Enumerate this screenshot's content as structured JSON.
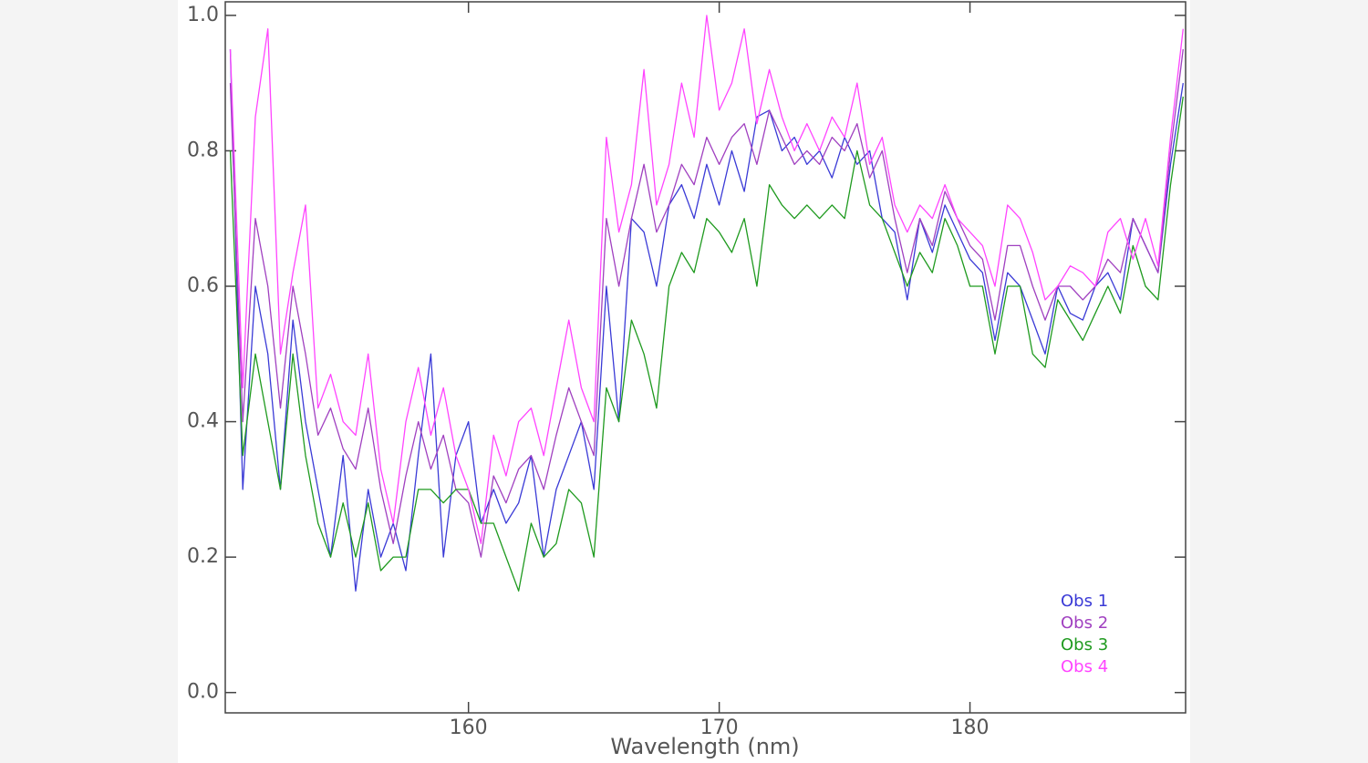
{
  "chart_data": {
    "type": "line",
    "xlabel": "Wavelength (nm)",
    "xlim": [
      150.3,
      188.6
    ],
    "ylim": [
      -0.03,
      1.02
    ],
    "xticks": [
      160,
      170,
      180
    ],
    "yticks": [
      {
        "value": 0,
        "label": "0.0"
      },
      0.2,
      0.4,
      0.6,
      0.8,
      {
        "value": 1,
        "label": "1.0"
      }
    ],
    "x": [
      150.5,
      151,
      151.5,
      152,
      152.5,
      153,
      153.5,
      154,
      154.5,
      155,
      155.5,
      156,
      156.5,
      157,
      157.5,
      158,
      158.5,
      159,
      159.5,
      160,
      160.5,
      161,
      161.5,
      162,
      162.5,
      163,
      163.5,
      164,
      164.5,
      165,
      165.5,
      166,
      166.5,
      167,
      167.5,
      168,
      168.5,
      169,
      169.5,
      170,
      170.5,
      171,
      171.5,
      172,
      172.5,
      173,
      173.5,
      174,
      174.5,
      175,
      175.5,
      176,
      176.5,
      177,
      177.5,
      178,
      178.5,
      179,
      179.5,
      180,
      180.5,
      181,
      181.5,
      182,
      182.5,
      183,
      183.5,
      184,
      184.5,
      185,
      185.5,
      186,
      186.5,
      187,
      187.5,
      188,
      188.5
    ],
    "series": [
      {
        "name": "Obs 1",
        "color": "#3a3ad6",
        "values": [
          0.95,
          0.3,
          0.6,
          0.5,
          0.3,
          0.55,
          0.4,
          0.3,
          0.2,
          0.35,
          0.15,
          0.3,
          0.2,
          0.25,
          0.18,
          0.35,
          0.5,
          0.2,
          0.35,
          0.4,
          0.25,
          0.3,
          0.25,
          0.28,
          0.35,
          0.2,
          0.3,
          0.35,
          0.4,
          0.3,
          0.6,
          0.4,
          0.7,
          0.68,
          0.6,
          0.72,
          0.75,
          0.7,
          0.78,
          0.72,
          0.8,
          0.74,
          0.85,
          0.86,
          0.8,
          0.82,
          0.78,
          0.8,
          0.76,
          0.82,
          0.78,
          0.8,
          0.7,
          0.68,
          0.58,
          0.7,
          0.65,
          0.72,
          0.68,
          0.64,
          0.62,
          0.52,
          0.62,
          0.6,
          0.55,
          0.5,
          0.6,
          0.56,
          0.55,
          0.6,
          0.62,
          0.58,
          0.7,
          0.66,
          0.62,
          0.78,
          0.9
        ]
      },
      {
        "name": "Obs 2",
        "color": "#a040c0",
        "values": [
          0.9,
          0.4,
          0.7,
          0.6,
          0.42,
          0.6,
          0.5,
          0.38,
          0.42,
          0.36,
          0.33,
          0.42,
          0.3,
          0.22,
          0.32,
          0.4,
          0.33,
          0.38,
          0.3,
          0.28,
          0.2,
          0.32,
          0.28,
          0.33,
          0.35,
          0.3,
          0.38,
          0.45,
          0.4,
          0.35,
          0.7,
          0.6,
          0.7,
          0.78,
          0.68,
          0.72,
          0.78,
          0.75,
          0.82,
          0.78,
          0.82,
          0.84,
          0.78,
          0.86,
          0.82,
          0.78,
          0.8,
          0.78,
          0.82,
          0.8,
          0.84,
          0.76,
          0.8,
          0.7,
          0.62,
          0.7,
          0.66,
          0.74,
          0.7,
          0.66,
          0.64,
          0.55,
          0.66,
          0.66,
          0.6,
          0.55,
          0.6,
          0.6,
          0.58,
          0.6,
          0.64,
          0.62,
          0.7,
          0.66,
          0.62,
          0.8,
          0.95
        ]
      },
      {
        "name": "Obs 3",
        "color": "#1f9a1f",
        "values": [
          0.8,
          0.35,
          0.5,
          0.4,
          0.3,
          0.5,
          0.35,
          0.25,
          0.2,
          0.28,
          0.2,
          0.28,
          0.18,
          0.2,
          0.2,
          0.3,
          0.3,
          0.28,
          0.3,
          0.3,
          0.25,
          0.25,
          0.2,
          0.15,
          0.25,
          0.2,
          0.22,
          0.3,
          0.28,
          0.2,
          0.45,
          0.4,
          0.55,
          0.5,
          0.42,
          0.6,
          0.65,
          0.62,
          0.7,
          0.68,
          0.65,
          0.7,
          0.6,
          0.75,
          0.72,
          0.7,
          0.72,
          0.7,
          0.72,
          0.7,
          0.8,
          0.72,
          0.7,
          0.65,
          0.6,
          0.65,
          0.62,
          0.7,
          0.66,
          0.6,
          0.6,
          0.5,
          0.6,
          0.6,
          0.5,
          0.48,
          0.58,
          0.55,
          0.52,
          0.56,
          0.6,
          0.56,
          0.66,
          0.6,
          0.58,
          0.75,
          0.88
        ]
      },
      {
        "name": "Obs 4",
        "color": "#ff44ff",
        "values": [
          0.95,
          0.45,
          0.85,
          0.98,
          0.5,
          0.62,
          0.72,
          0.42,
          0.47,
          0.4,
          0.38,
          0.5,
          0.33,
          0.25,
          0.4,
          0.48,
          0.38,
          0.45,
          0.35,
          0.3,
          0.22,
          0.38,
          0.32,
          0.4,
          0.42,
          0.35,
          0.45,
          0.55,
          0.45,
          0.4,
          0.82,
          0.68,
          0.75,
          0.92,
          0.72,
          0.78,
          0.9,
          0.82,
          1.0,
          0.86,
          0.9,
          0.98,
          0.84,
          0.92,
          0.85,
          0.8,
          0.84,
          0.8,
          0.85,
          0.82,
          0.9,
          0.78,
          0.82,
          0.72,
          0.68,
          0.72,
          0.7,
          0.75,
          0.7,
          0.68,
          0.66,
          0.6,
          0.72,
          0.7,
          0.65,
          0.58,
          0.6,
          0.63,
          0.62,
          0.6,
          0.68,
          0.7,
          0.64,
          0.7,
          0.63,
          0.82,
          0.98
        ]
      }
    ]
  }
}
